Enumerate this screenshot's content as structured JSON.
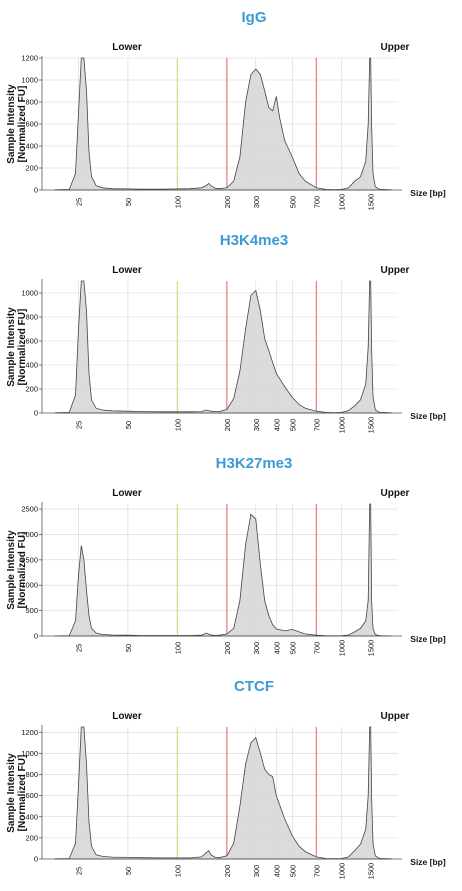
{
  "x_axis_label": "Size [bp]",
  "y_axis_label_line1": "Sample Intensity",
  "y_axis_label_line2": "[Normalized FU]",
  "lower_marker_label": "Lower",
  "upper_marker_label": "Upper",
  "colors": {
    "title": "#3c9ad6",
    "region_start_line": "#d4d98a",
    "region_line": "#e06060",
    "trace_fill": "#d9d9d9",
    "trace_stroke": "#444444"
  },
  "chart_data": [
    {
      "type": "area",
      "title": "IgG",
      "xlabel": "Size [bp]",
      "ylabel": "Sample Intensity [Normalized FU]",
      "x_scale": "log",
      "x_ticks": [
        "25",
        "50",
        "100",
        "200",
        "300",
        "500",
        "700",
        "1000",
        "1500"
      ],
      "y_ticks": [
        "0",
        "200",
        "400",
        "600",
        "800",
        "1000",
        "1200"
      ],
      "ylim": [
        0,
        1200
      ],
      "grid": true,
      "marker_lines_bp": {
        "region_start": 100,
        "region_low": 200,
        "region_high": 700
      },
      "series": [
        {
          "x": [
            18,
            22,
            24,
            25,
            26,
            27,
            28,
            29,
            30,
            32,
            35,
            40,
            50,
            60,
            80,
            100,
            120,
            140,
            150,
            155,
            160,
            170,
            180,
            200,
            220,
            240,
            260,
            280,
            300,
            320,
            340,
            360,
            380,
            400,
            420,
            450,
            500,
            550,
            600,
            700,
            800,
            900,
            1000,
            1100,
            1200,
            1300,
            1400,
            1450,
            1480,
            1500,
            1520,
            1550,
            1600,
            1700,
            2000
          ],
          "y": [
            2,
            5,
            150,
            700,
            1200,
            1200,
            900,
            350,
            120,
            40,
            20,
            12,
            10,
            8,
            8,
            10,
            12,
            20,
            40,
            60,
            40,
            15,
            12,
            20,
            80,
            300,
            800,
            1050,
            1100,
            1050,
            900,
            750,
            720,
            850,
            650,
            450,
            300,
            150,
            80,
            20,
            5,
            3,
            5,
            20,
            80,
            120,
            260,
            600,
            1200,
            1200,
            600,
            150,
            30,
            5,
            2
          ]
        }
      ]
    },
    {
      "type": "area",
      "title": "H3K4me3",
      "xlabel": "Size [bp]",
      "ylabel": "Sample Intensity [Normalized FU]",
      "x_scale": "log",
      "x_ticks": [
        "25",
        "50",
        "100",
        "200",
        "300",
        "400",
        "500",
        "700",
        "1000",
        "1500"
      ],
      "y_ticks": [
        "0",
        "200",
        "400",
        "600",
        "800",
        "1000"
      ],
      "ylim": [
        0,
        1100
      ],
      "grid": true,
      "marker_lines_bp": {
        "region_start": 100,
        "region_low": 200,
        "region_high": 700
      },
      "series": [
        {
          "x": [
            18,
            22,
            24,
            25,
            26,
            27,
            28,
            29,
            30,
            32,
            35,
            40,
            50,
            60,
            80,
            100,
            120,
            140,
            150,
            160,
            170,
            180,
            200,
            220,
            240,
            260,
            280,
            300,
            320,
            340,
            360,
            380,
            400,
            450,
            500,
            550,
            600,
            700,
            800,
            900,
            1000,
            1100,
            1200,
            1300,
            1400,
            1450,
            1480,
            1500,
            1520,
            1550,
            1600,
            1700,
            2000
          ],
          "y": [
            2,
            5,
            150,
            700,
            1100,
            1100,
            850,
            330,
            110,
            40,
            25,
            18,
            15,
            12,
            10,
            10,
            10,
            12,
            25,
            15,
            12,
            12,
            30,
            120,
            350,
            700,
            980,
            1020,
            850,
            620,
            520,
            420,
            330,
            220,
            130,
            70,
            40,
            15,
            5,
            3,
            5,
            20,
            60,
            110,
            240,
            550,
            1100,
            1100,
            550,
            140,
            25,
            5,
            2
          ]
        }
      ]
    },
    {
      "type": "area",
      "title": "H3K27me3",
      "xlabel": "Size [bp]",
      "ylabel": "Sample Intensity [Normalized FU]",
      "x_scale": "log",
      "x_ticks": [
        "25",
        "50",
        "100",
        "200",
        "300",
        "400",
        "500",
        "700",
        "1000",
        "1500"
      ],
      "y_ticks": [
        "0",
        "500",
        "1000",
        "1500",
        "2000",
        "2500"
      ],
      "ylim": [
        0,
        2600
      ],
      "grid": true,
      "marker_lines_bp": {
        "region_start": 100,
        "region_low": 200,
        "region_high": 700
      },
      "series": [
        {
          "x": [
            18,
            22,
            24,
            25,
            26,
            27,
            28,
            29,
            30,
            32,
            35,
            40,
            50,
            60,
            80,
            100,
            120,
            140,
            150,
            160,
            170,
            180,
            200,
            220,
            240,
            260,
            280,
            300,
            320,
            340,
            360,
            380,
            400,
            450,
            500,
            550,
            600,
            700,
            800,
            900,
            1000,
            1100,
            1200,
            1300,
            1400,
            1450,
            1480,
            1500,
            1520,
            1550,
            1600,
            1700,
            2000
          ],
          "y": [
            2,
            8,
            300,
            1200,
            1780,
            1500,
            900,
            400,
            150,
            60,
            30,
            20,
            15,
            10,
            10,
            10,
            10,
            15,
            60,
            20,
            12,
            15,
            40,
            150,
            700,
            1800,
            2400,
            2300,
            1400,
            700,
            400,
            220,
            140,
            100,
            130,
            80,
            40,
            15,
            5,
            3,
            5,
            20,
            80,
            150,
            300,
            700,
            2600,
            2600,
            700,
            150,
            30,
            5,
            2
          ]
        }
      ]
    },
    {
      "type": "area",
      "title": "CTCF",
      "xlabel": "Size [bp]",
      "ylabel": "Sample Intensity [Normalized FU]",
      "x_scale": "log",
      "x_ticks": [
        "25",
        "50",
        "100",
        "200",
        "300",
        "400",
        "500",
        "700",
        "1000",
        "1500"
      ],
      "y_ticks": [
        "0",
        "200",
        "400",
        "600",
        "800",
        "1000",
        "1200"
      ],
      "ylim": [
        0,
        1250
      ],
      "grid": true,
      "marker_lines_bp": {
        "region_start": 100,
        "region_low": 200,
        "region_high": 700
      },
      "series": [
        {
          "x": [
            18,
            22,
            24,
            25,
            26,
            27,
            28,
            29,
            30,
            32,
            35,
            40,
            50,
            60,
            80,
            100,
            120,
            140,
            150,
            155,
            160,
            170,
            180,
            200,
            220,
            240,
            260,
            280,
            300,
            320,
            340,
            360,
            380,
            400,
            450,
            500,
            550,
            600,
            700,
            800,
            900,
            1000,
            1100,
            1200,
            1300,
            1400,
            1450,
            1480,
            1500,
            1520,
            1550,
            1600,
            1700,
            2000
          ],
          "y": [
            2,
            5,
            150,
            700,
            1250,
            1250,
            900,
            350,
            120,
            40,
            25,
            18,
            15,
            12,
            10,
            10,
            10,
            20,
            60,
            80,
            40,
            15,
            12,
            30,
            150,
            500,
            900,
            1100,
            1150,
            1000,
            850,
            800,
            780,
            600,
            380,
            220,
            120,
            70,
            20,
            5,
            3,
            5,
            20,
            80,
            140,
            280,
            600,
            1250,
            1250,
            600,
            150,
            30,
            5,
            2
          ]
        }
      ]
    }
  ]
}
